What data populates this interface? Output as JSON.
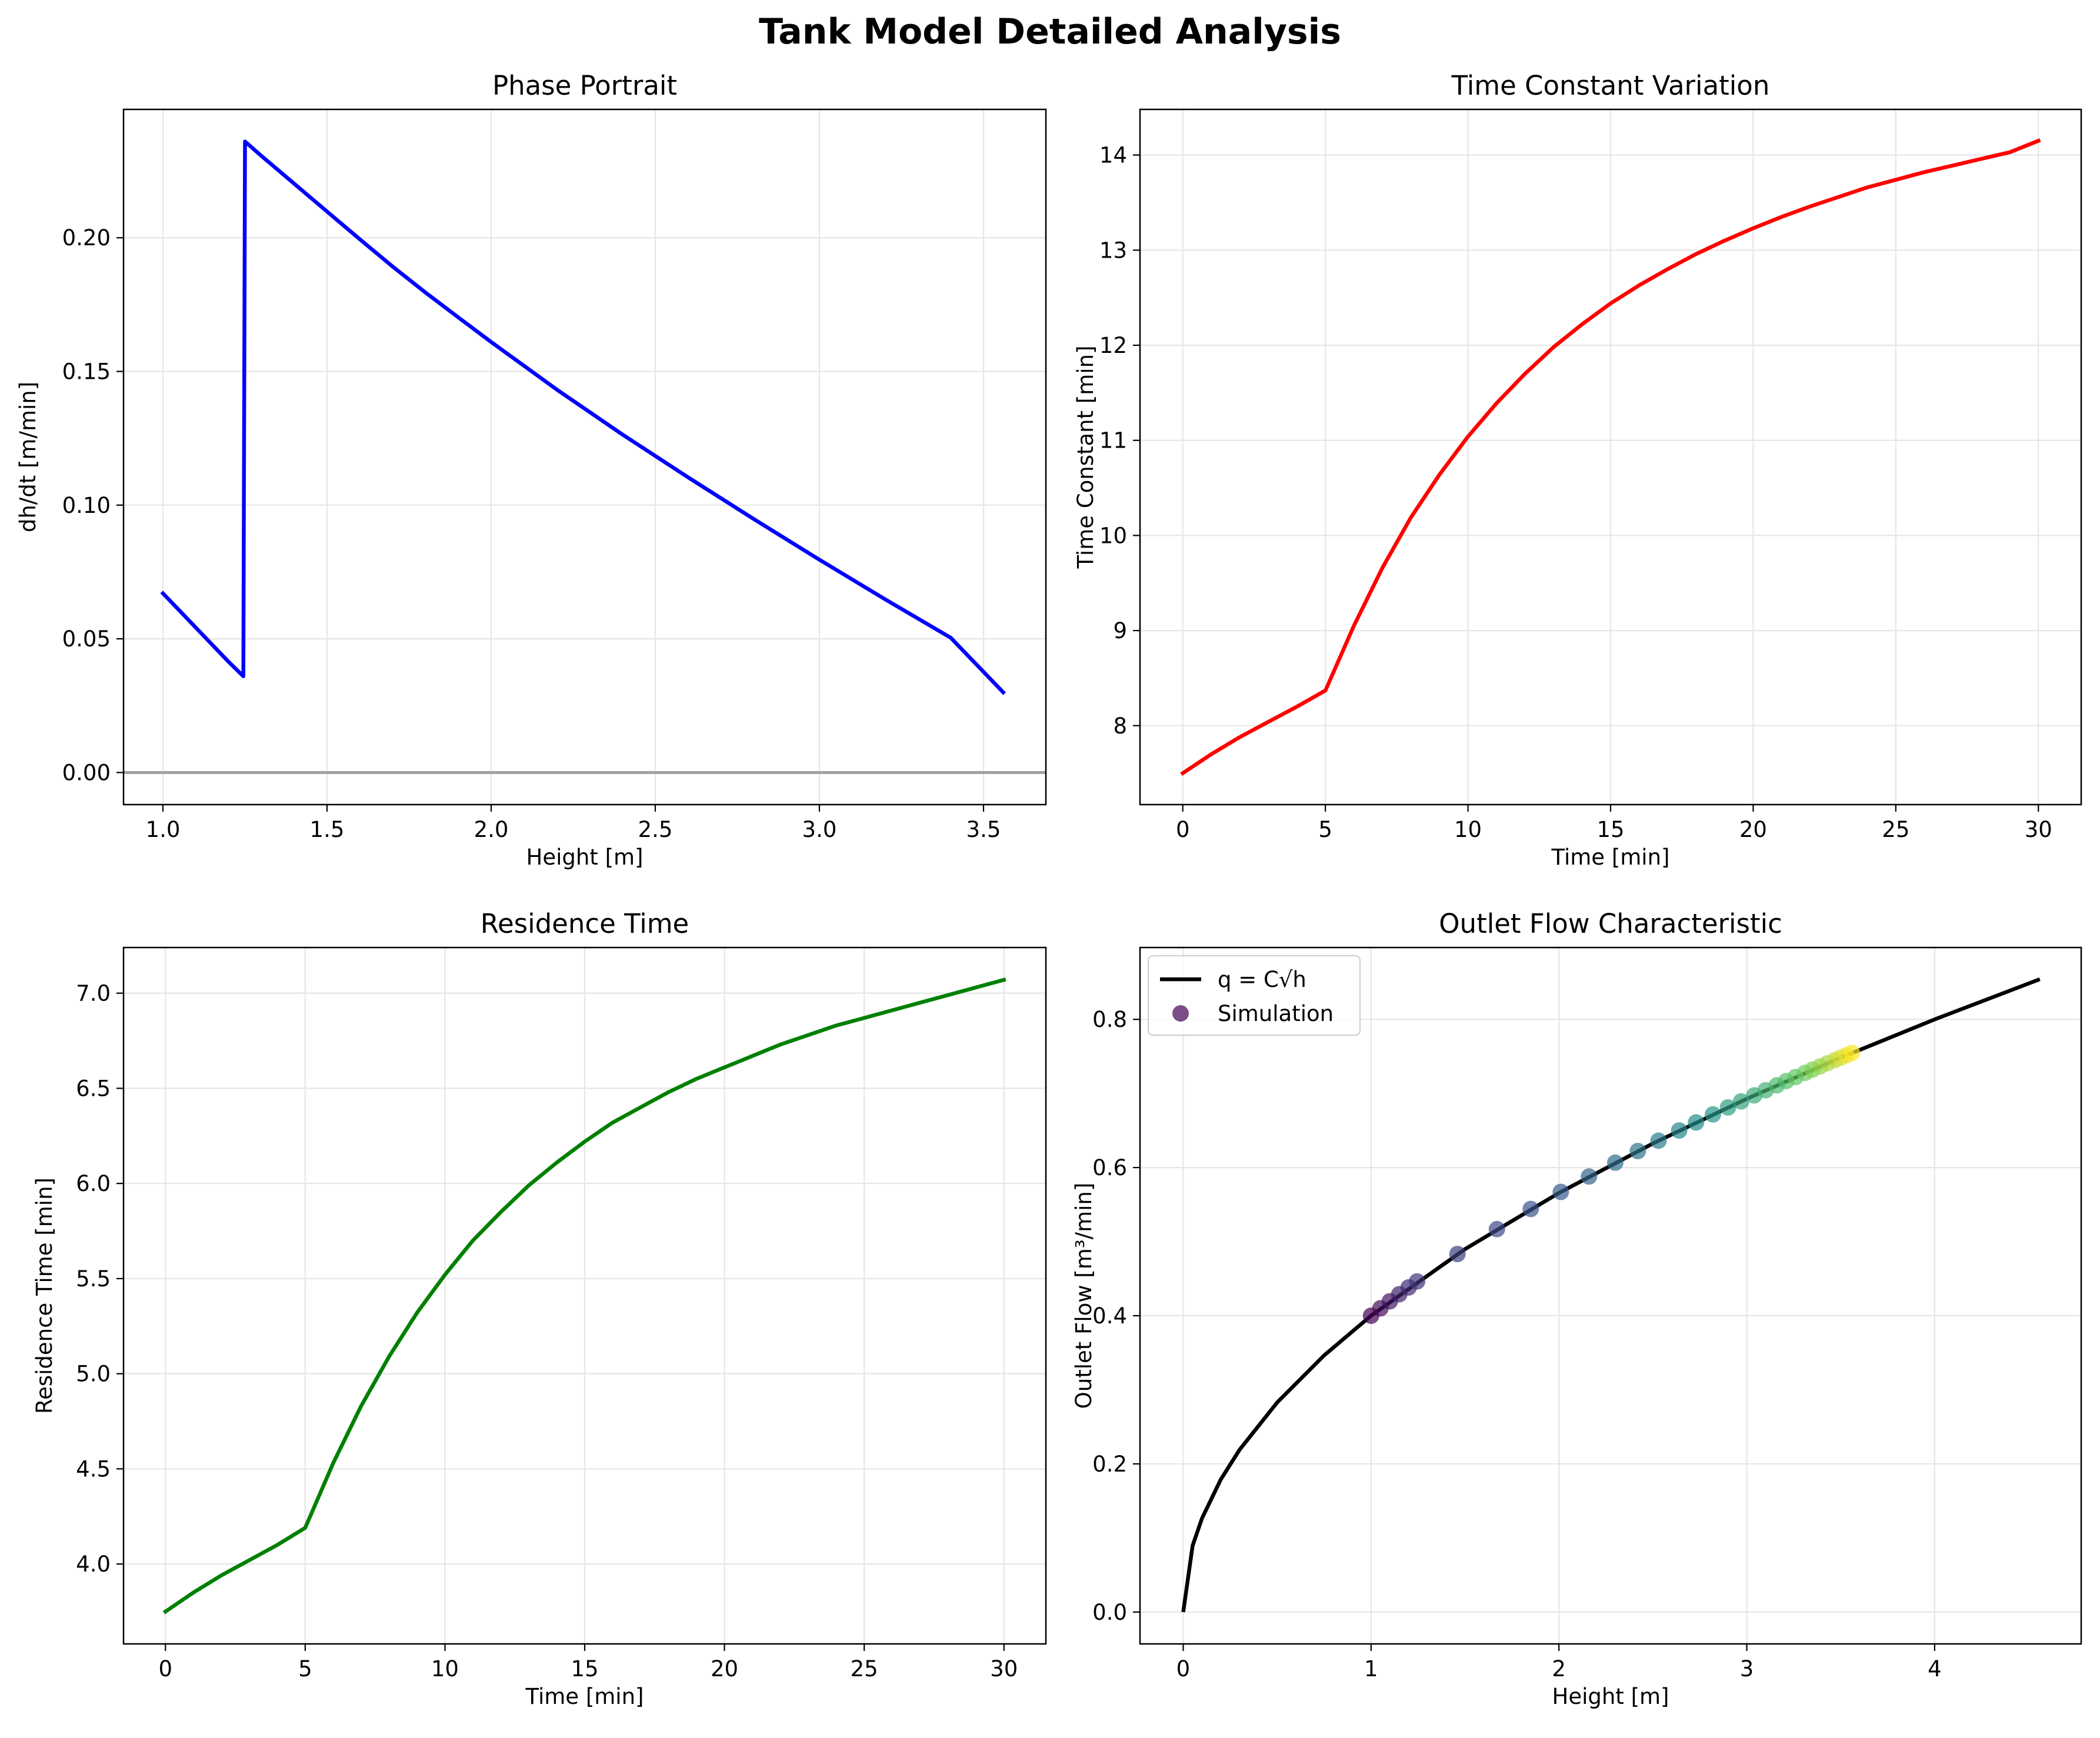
{
  "figure": {
    "suptitle": "Tank Model Detailed Analysis"
  },
  "chart_data": [
    {
      "id": "phase",
      "type": "line",
      "title": "Phase Portrait",
      "xlabel": "Height [m]",
      "ylabel": "dh/dt [m/min]",
      "xlim": [
        0.88,
        3.69
      ],
      "ylim": [
        -0.012,
        0.248
      ],
      "xticks": [
        1.0,
        1.5,
        2.0,
        2.5,
        3.0,
        3.5
      ],
      "xtick_labels": [
        "1.0",
        "1.5",
        "2.0",
        "2.5",
        "3.0",
        "3.5"
      ],
      "yticks": [
        0.0,
        0.05,
        0.1,
        0.15,
        0.2
      ],
      "ytick_labels": [
        "0.00",
        "0.05",
        "0.10",
        "0.15",
        "0.20"
      ],
      "grid": true,
      "hline": {
        "y": 0.0,
        "color": "#a0a0a0"
      },
      "series": [
        {
          "color": "#0000ff",
          "x": [
            1.0,
            1.05,
            1.1,
            1.15,
            1.2,
            1.245,
            1.25,
            1.3,
            1.4,
            1.5,
            1.6,
            1.7,
            1.8,
            1.9,
            2.0,
            2.2,
            2.4,
            2.6,
            2.8,
            3.0,
            3.2,
            3.4,
            3.56
          ],
          "y": [
            0.067,
            0.0606,
            0.0542,
            0.0478,
            0.0414,
            0.036,
            0.236,
            0.2306,
            0.2202,
            0.2098,
            0.1994,
            0.1892,
            0.1795,
            0.1702,
            0.161,
            0.1432,
            0.1264,
            0.1104,
            0.0948,
            0.0796,
            0.0648,
            0.0504,
            0.03
          ]
        }
      ]
    },
    {
      "id": "tau",
      "type": "line",
      "title": "Time Constant Variation",
      "xlabel": "Time [min]",
      "ylabel": "Time Constant [min]",
      "xlim": [
        -1.5,
        31.5
      ],
      "ylim": [
        7.17,
        14.48
      ],
      "xticks": [
        0,
        5,
        10,
        15,
        20,
        25,
        30
      ],
      "xtick_labels": [
        "0",
        "5",
        "10",
        "15",
        "20",
        "25",
        "30"
      ],
      "yticks": [
        8,
        9,
        10,
        11,
        12,
        13,
        14
      ],
      "ytick_labels": [
        "8",
        "9",
        "10",
        "11",
        "12",
        "13",
        "14"
      ],
      "grid": true,
      "series": [
        {
          "color": "#ff0000",
          "x": [
            0,
            1,
            2,
            3,
            4,
            5,
            6,
            7,
            8,
            9,
            10,
            11,
            12,
            13,
            14,
            15,
            16,
            17,
            18,
            19,
            20,
            21,
            22,
            23,
            24,
            25,
            26,
            27,
            28,
            29,
            30
          ],
          "y": [
            7.5,
            7.7,
            7.88,
            8.04,
            8.2,
            8.37,
            9.05,
            9.66,
            10.19,
            10.64,
            11.04,
            11.39,
            11.7,
            11.98,
            12.22,
            12.44,
            12.63,
            12.8,
            12.96,
            13.1,
            13.23,
            13.35,
            13.46,
            13.56,
            13.66,
            13.74,
            13.82,
            13.89,
            13.96,
            14.03,
            14.15
          ]
        }
      ]
    },
    {
      "id": "residence",
      "type": "line",
      "title": "Residence Time",
      "xlabel": "Time [min]",
      "ylabel": "Residence Time [min]",
      "xlim": [
        -1.5,
        31.5
      ],
      "ylim": [
        3.58,
        7.24
      ],
      "xticks": [
        0,
        5,
        10,
        15,
        20,
        25,
        30
      ],
      "xtick_labels": [
        "0",
        "5",
        "10",
        "15",
        "20",
        "25",
        "30"
      ],
      "yticks": [
        4.0,
        4.5,
        5.0,
        5.5,
        6.0,
        6.5,
        7.0
      ],
      "ytick_labels": [
        "4.0",
        "4.5",
        "5.0",
        "5.5",
        "6.0",
        "6.5",
        "7.0"
      ],
      "grid": true,
      "series": [
        {
          "color": "#008000",
          "x": [
            0,
            1,
            2,
            3,
            4,
            5,
            6,
            7,
            8,
            9,
            10,
            11,
            12,
            13,
            14,
            15,
            16,
            17,
            18,
            19,
            20,
            21,
            22,
            23,
            24,
            25,
            26,
            27,
            28,
            29,
            30
          ],
          "y": [
            3.75,
            3.85,
            3.94,
            4.02,
            4.1,
            4.19,
            4.53,
            4.83,
            5.09,
            5.32,
            5.52,
            5.7,
            5.85,
            5.99,
            6.11,
            6.22,
            6.32,
            6.4,
            6.48,
            6.55,
            6.61,
            6.67,
            6.73,
            6.78,
            6.83,
            6.87,
            6.91,
            6.95,
            6.99,
            7.03,
            7.07
          ]
        }
      ]
    },
    {
      "id": "outlet",
      "type": "scatter",
      "title": "Outlet Flow Characteristic",
      "xlabel": "Height [m]",
      "ylabel": "Outlet Flow [m³/min]",
      "xlim": [
        -0.23,
        4.78
      ],
      "ylim": [
        -0.043,
        0.897
      ],
      "xticks": [
        0,
        1,
        2,
        3,
        4
      ],
      "xtick_labels": [
        "0",
        "1",
        "2",
        "3",
        "4"
      ],
      "yticks": [
        0.0,
        0.2,
        0.4,
        0.6,
        0.8
      ],
      "ytick_labels": [
        "0.0",
        "0.2",
        "0.4",
        "0.6",
        "0.8"
      ],
      "grid": true,
      "legend": {
        "position": "top-left",
        "entries": [
          "q = C√h",
          "Simulation"
        ]
      },
      "curve": {
        "name": "q = C√h",
        "color": "#000000",
        "x": [
          0,
          0.05,
          0.1,
          0.2,
          0.3,
          0.5,
          0.75,
          1.0,
          1.5,
          2.0,
          2.5,
          3.0,
          3.5,
          4.0,
          4.56
        ],
        "y": [
          0.0,
          0.0894,
          0.1265,
          0.1789,
          0.2191,
          0.2828,
          0.3464,
          0.4,
          0.4899,
          0.5657,
          0.6325,
          0.6928,
          0.7483,
          0.8,
          0.8542
        ]
      },
      "scatter": {
        "name": "Simulation",
        "colormap": "viridis",
        "x": [
          1.0,
          1.05,
          1.1,
          1.15,
          1.2,
          1.245,
          1.46,
          1.67,
          1.85,
          2.01,
          2.16,
          2.3,
          2.42,
          2.53,
          2.64,
          2.73,
          2.82,
          2.9,
          2.97,
          3.04,
          3.1,
          3.16,
          3.21,
          3.26,
          3.31,
          3.35,
          3.39,
          3.43,
          3.47,
          3.5,
          3.53,
          3.56
        ],
        "y": [
          0.4,
          0.41,
          0.4195,
          0.429,
          0.4382,
          0.4463,
          0.4833,
          0.5169,
          0.5441,
          0.5671,
          0.5879,
          0.6066,
          0.6223,
          0.6362,
          0.65,
          0.6609,
          0.6717,
          0.6812,
          0.6893,
          0.6974,
          0.7043,
          0.711,
          0.7167,
          0.7222,
          0.7277,
          0.7321,
          0.7365,
          0.7408,
          0.7451,
          0.7483,
          0.7515,
          0.7547
        ]
      }
    }
  ]
}
